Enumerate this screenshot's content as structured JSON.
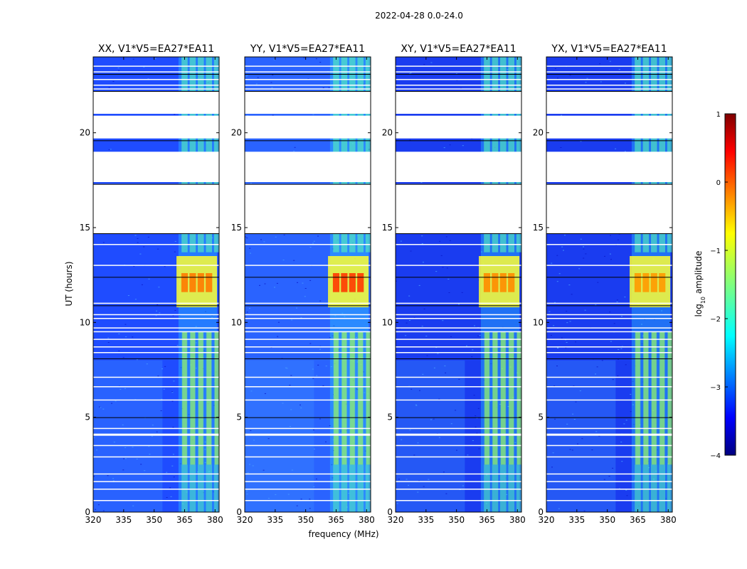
{
  "figure": {
    "suptitle": "2022-04-28 0.0-24.0",
    "xlabel": "frequency (MHz)",
    "ylabel": "UT (hours)"
  },
  "chart_data": {
    "type": "heatmap",
    "description": "Dynamic spectra (waterfall) of visibility amplitude vs frequency and UT for four polarization products",
    "xlim": [
      320,
      382
    ],
    "ylim": [
      0,
      24
    ],
    "xticks": [
      320,
      335,
      350,
      365,
      380
    ],
    "yticks": [
      0,
      5,
      10,
      15,
      20
    ],
    "panels": [
      {
        "title": "XX, V1*V5=EA27*EA11",
        "background": "#1f4cff",
        "rfi_peak": "#ff7a00"
      },
      {
        "title": "YY, V1*V5=EA27*EA11",
        "background": "#2a63ff",
        "rfi_peak": "#ff3a00"
      },
      {
        "title": "XY, V1*V5=EA27*EA11",
        "background": "#1a3cf0",
        "rfi_peak": "#ff8c00"
      },
      {
        "title": "YX, V1*V5=EA27*EA11",
        "background": "#1a3cf0",
        "rfi_peak": "#ff9a00"
      }
    ],
    "rfi_channels_mhz": [
      365,
      369,
      373,
      377,
      381
    ],
    "rfi_band_mhz": [
      362,
      381
    ],
    "flagged_ut_ranges": [
      [
        17.4,
        19.0
      ],
      [
        19.7,
        20.9
      ],
      [
        21.0,
        22.2
      ]
    ],
    "strong_rfi_ut_range": [
      10.8,
      13.5
    ],
    "colorbar": {
      "label": "log10 amplitude",
      "label_prefix": "log",
      "label_sub": "10",
      "label_suffix": " amplitude",
      "range": [
        -4,
        1
      ],
      "ticks": [
        1,
        0,
        -1,
        -2,
        -3,
        -4
      ],
      "colormap": "jet"
    }
  }
}
